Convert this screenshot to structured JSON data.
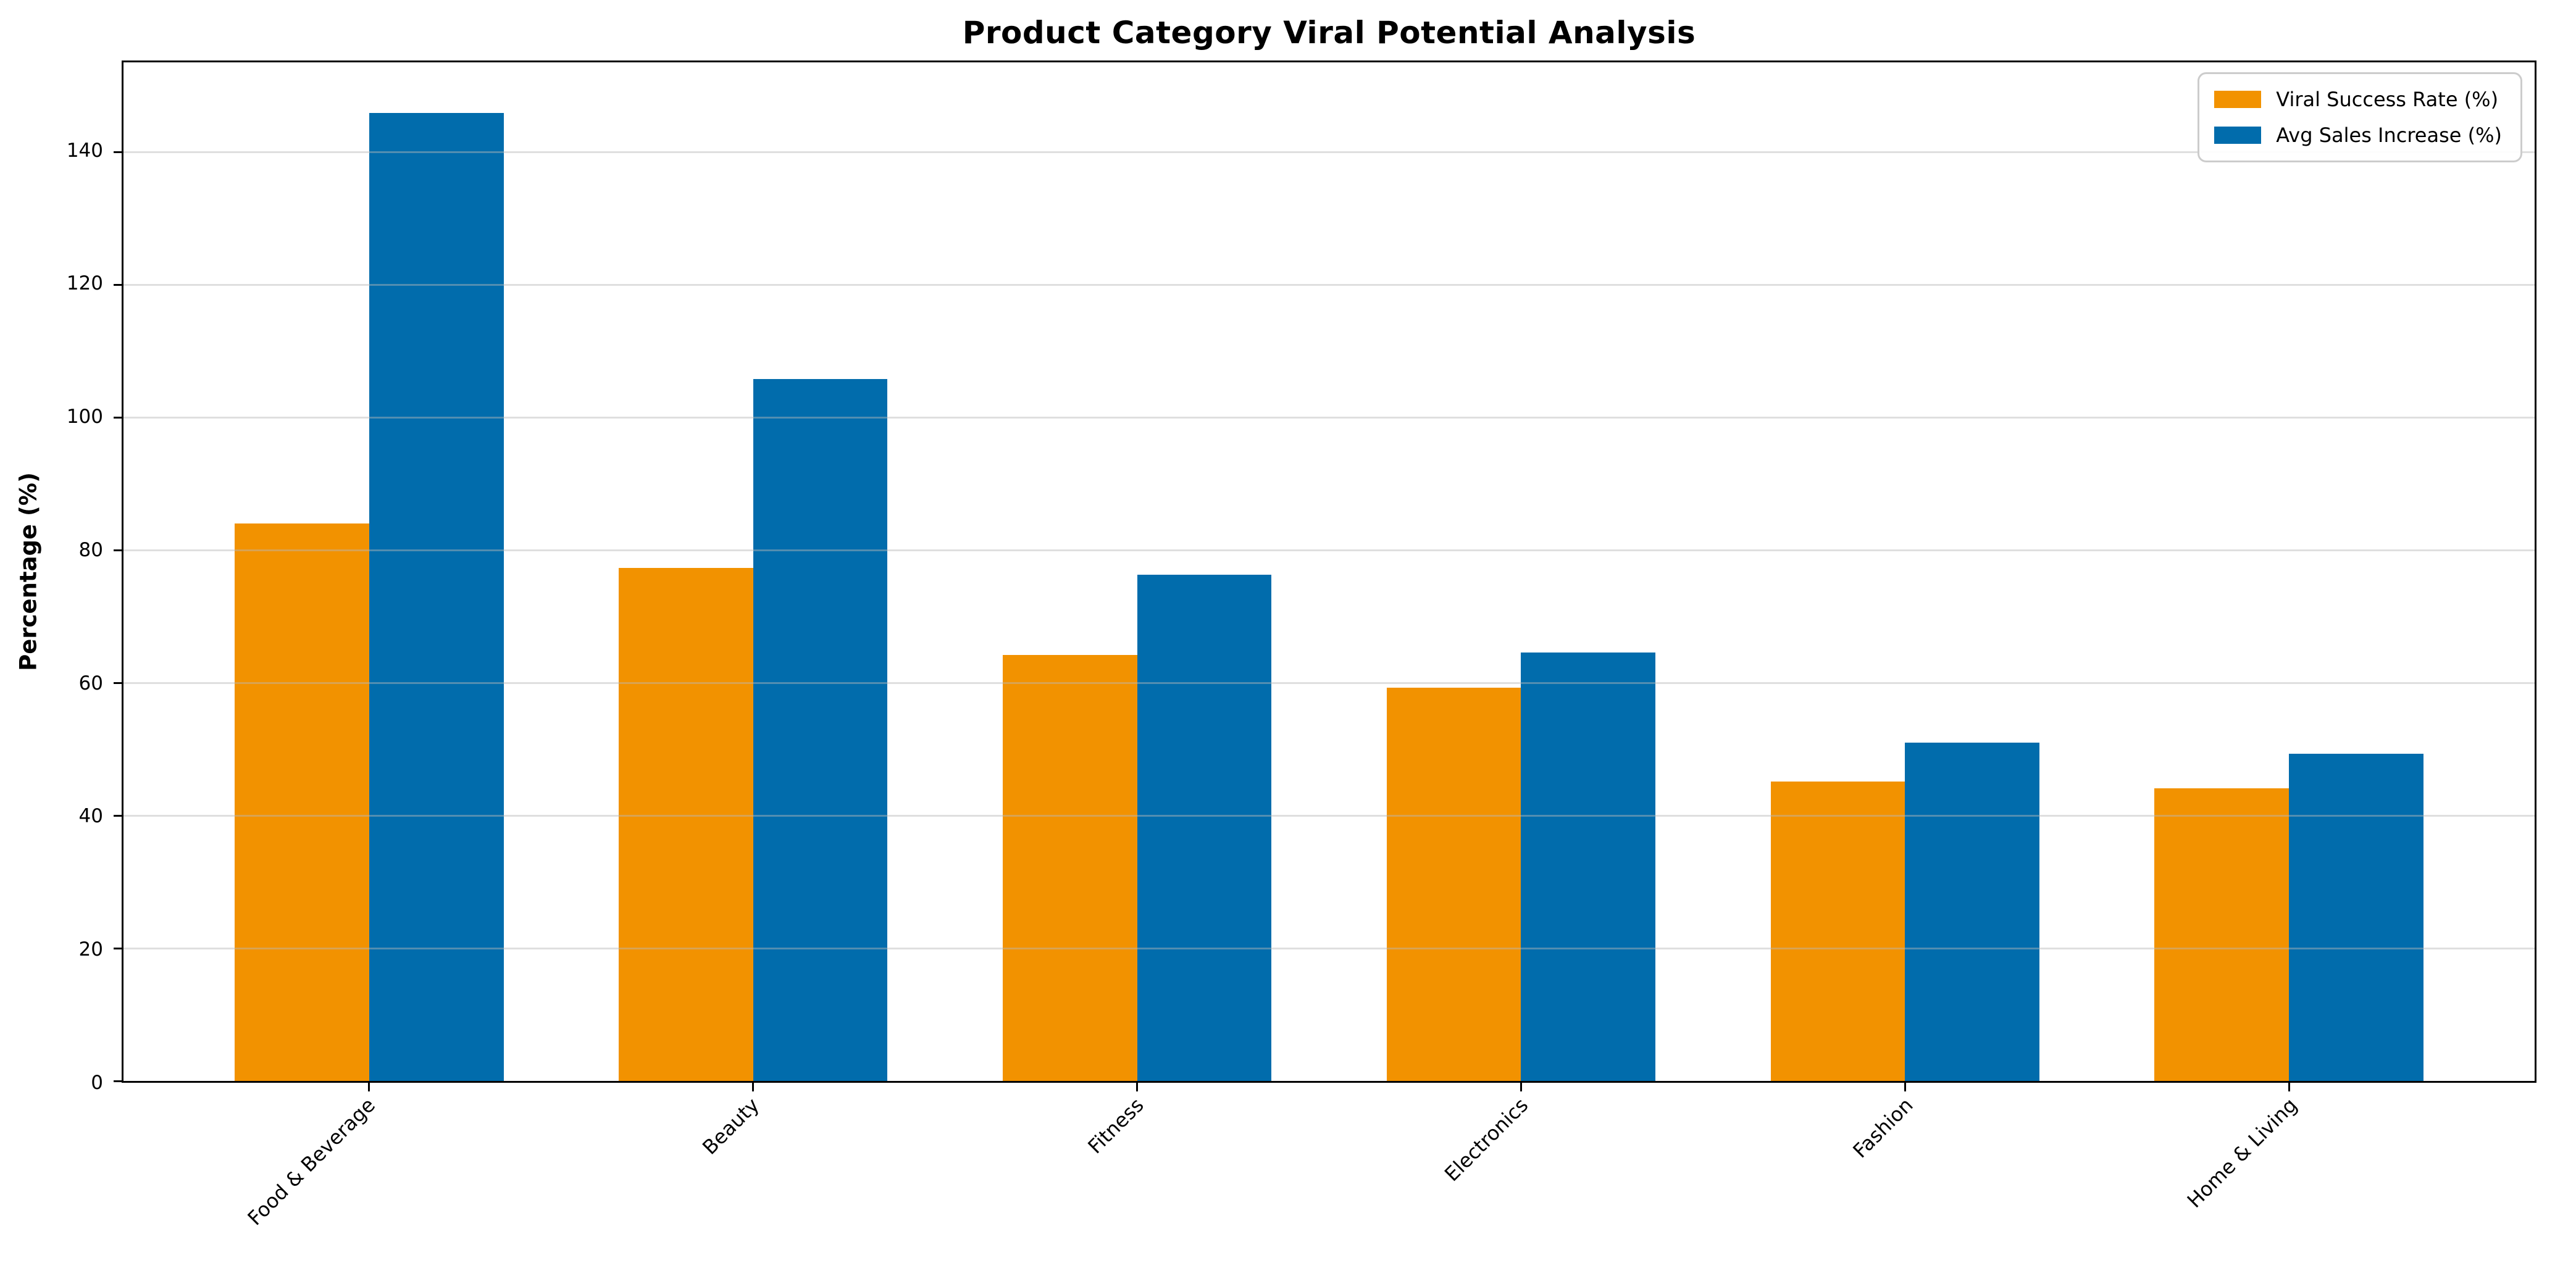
{
  "chart_data": {
    "type": "bar",
    "title": "Product Category Viral Potential Analysis",
    "ylabel": "Percentage (%)",
    "xlabel": "",
    "categories": [
      "Food & Beverage",
      "Beauty",
      "Fitness",
      "Electronics",
      "Fashion",
      "Home & Living"
    ],
    "series": [
      {
        "name": "Viral Success Rate (%)",
        "color": "#f29200",
        "values": [
          84,
          77.3,
          64.2,
          59.3,
          45.1,
          44.1
        ]
      },
      {
        "name": "Avg Sales Increase (%)",
        "color": "#016cac",
        "values": [
          145.9,
          105.8,
          76.3,
          64.6,
          51.0,
          49.3
        ]
      }
    ],
    "ylim": [
      0,
      153.5
    ],
    "yticks": [
      0,
      20,
      40,
      60,
      80,
      100,
      120,
      140
    ],
    "grid": true,
    "grid_color": "#bababa",
    "legend_position": "upper right",
    "bar_width_fraction": 0.35,
    "x_range": [
      -0.64,
      5.64
    ]
  }
}
